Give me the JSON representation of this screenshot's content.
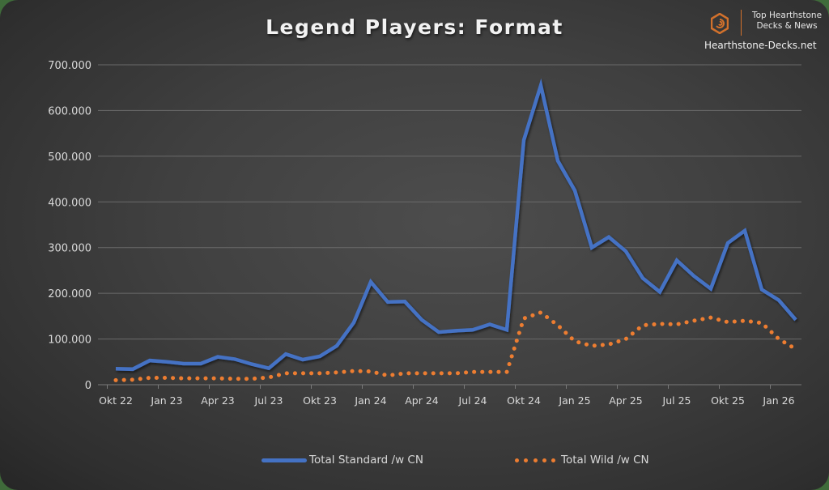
{
  "brand": {
    "line1": "Top Hearthstone",
    "line2": "Decks & News",
    "url": "Hearthstone-Decks.net",
    "logo_icon": "hearthstone-logo-icon",
    "accent_color": "#d2712c"
  },
  "legend": {
    "standard_label": "Total Standard /w CN",
    "wild_label": "Total Wild /w CN"
  },
  "chart_data": {
    "type": "line",
    "title": "Legend Players: Format",
    "xlabel": "",
    "ylabel": "",
    "ylim": [
      0,
      700000
    ],
    "yticks": [
      0,
      100000,
      200000,
      300000,
      400000,
      500000,
      600000,
      700000
    ],
    "ytick_labels": [
      "0",
      "100.000",
      "200.000",
      "300.000",
      "400.000",
      "500.000",
      "600.000",
      "700.000"
    ],
    "xtick_labels": [
      "Okt 22",
      "Jan 23",
      "Apr 23",
      "Jul 23",
      "Okt 23",
      "Jan 24",
      "Apr 24",
      "Jul 24",
      "Okt 24",
      "Jan 25",
      "Apr 25",
      "Jul 25",
      "Okt 25",
      "Jan 26"
    ],
    "grid": true,
    "legend_position": "bottom",
    "categories": [
      "Okt 22",
      "Nov 22",
      "Dez 22",
      "Jan 23",
      "Feb 23",
      "Mär 23",
      "Apr 23",
      "Mai 23",
      "Jun 23",
      "Jul 23",
      "Aug 23",
      "Sep 23",
      "Okt 23",
      "Nov 23",
      "Dez 23",
      "Jan 24",
      "Feb 24",
      "Mär 24",
      "Apr 24",
      "Mai 24",
      "Jun 24",
      "Jul 24",
      "Aug 24",
      "Sep 24",
      "Okt 24",
      "Nov 24",
      "Dez 24",
      "Jan 25",
      "Feb 25",
      "Mär 25",
      "Apr 25",
      "Mai 25",
      "Jun 25",
      "Jul 25",
      "Aug 25",
      "Sep 25",
      "Okt 25",
      "Nov 25",
      "Dez 25",
      "Jan 26",
      "Feb 26"
    ],
    "series": [
      {
        "name": "Total Standard /w CN",
        "color": "#4472c4",
        "style": "solid",
        "values": [
          35000,
          34000,
          53000,
          50000,
          46000,
          46000,
          61000,
          56000,
          45000,
          36000,
          67000,
          55000,
          62000,
          85000,
          136000,
          225000,
          181000,
          182000,
          142000,
          115000,
          118000,
          120000,
          132000,
          120000,
          535000,
          655000,
          490000,
          425000,
          300000,
          323000,
          292000,
          233000,
          203000,
          272000,
          238000,
          210000,
          310000,
          337000,
          208000,
          185000,
          142000
        ]
      },
      {
        "name": "Total Wild /w CN",
        "color": "#ed7d31",
        "style": "dotted",
        "values": [
          10000,
          11000,
          15000,
          15000,
          14000,
          14000,
          14000,
          13000,
          13000,
          16000,
          25000,
          25000,
          25000,
          27000,
          30000,
          29000,
          20000,
          25000,
          25000,
          25000,
          25000,
          28000,
          28000,
          28000,
          145000,
          158000,
          130000,
          95000,
          85000,
          88000,
          100000,
          130000,
          133000,
          132000,
          140000,
          147000,
          137000,
          140000,
          135000,
          100000,
          78000
        ]
      }
    ]
  }
}
